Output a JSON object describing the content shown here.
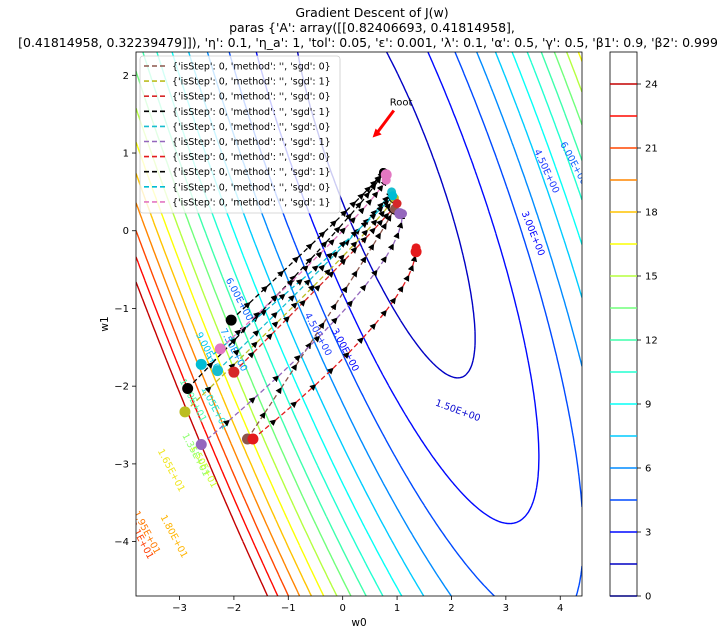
{
  "chart_data": {
    "type": "contour",
    "title": [
      "Gradient Descent of J(w)",
      "paras {'A': array([[0.82406693, 0.41814958],",
      "[0.41814958, 0.32239479]]), 'η': 0.1, 'η_a': 1, 'tol': 0.05, 'ε': 0.001, 'λ': 0.1, 'α': 0.5, 'γ': 0.5, 'β1': 0.9, 'β2': 0.999}"
    ],
    "xlabel": "w0",
    "ylabel": "w1",
    "xlim": [
      -3.8,
      4.4
    ],
    "ylim": [
      -4.7,
      2.3
    ],
    "xticks": [
      -3,
      -2,
      -1,
      0,
      1,
      2,
      3,
      4
    ],
    "yticks": [
      -4,
      -3,
      -2,
      -1,
      0,
      1,
      2
    ],
    "contour_levels": [
      0,
      1.5,
      3,
      4.5,
      6,
      7.5,
      9,
      10.5,
      12,
      13.5,
      15,
      16.5,
      18,
      19.5,
      21,
      22.5,
      24
    ],
    "contour_labels": [
      {
        "text": "1.50E+00",
        "x": 2.1,
        "y": -2.35,
        "angle": 20,
        "color": "#0a0ad0"
      },
      {
        "text": "3.00E+00",
        "x": 0.0,
        "y": -1.55,
        "angle": 62,
        "color": "#0000ff"
      },
      {
        "text": "3.00E+00",
        "x": 3.45,
        "y": -0.05,
        "angle": 68,
        "color": "#0000ff"
      },
      {
        "text": "4.50E+00",
        "x": -0.5,
        "y": -1.35,
        "angle": 62,
        "color": "#1f3cff"
      },
      {
        "text": "4.50E+00",
        "x": 3.7,
        "y": 0.75,
        "angle": 65,
        "color": "#1f3cff"
      },
      {
        "text": "6.00E+00",
        "x": -1.95,
        "y": -0.9,
        "angle": 62,
        "color": "#0a62ff"
      },
      {
        "text": "6.00E+00",
        "x": 4.2,
        "y": 0.85,
        "angle": 62,
        "color": "#0a62ff"
      },
      {
        "text": "7.50E+00",
        "x": -2.05,
        "y": -1.55,
        "angle": 62,
        "color": "#0096ff"
      },
      {
        "text": "9.00E+00",
        "x": -2.5,
        "y": -1.6,
        "angle": 62,
        "color": "#00c8f0"
      },
      {
        "text": "1.05E+01",
        "x": -2.4,
        "y": -2.3,
        "angle": 62,
        "color": "#1ee6d2"
      },
      {
        "text": "1.20E+01",
        "x": -2.8,
        "y": -2.2,
        "angle": 62,
        "color": "#4dffa8"
      },
      {
        "text": "1.35E+01",
        "x": -2.75,
        "y": -2.9,
        "angle": 62,
        "color": "#8cff6e"
      },
      {
        "text": "1.50E+01",
        "x": -2.6,
        "y": -3.05,
        "angle": 62,
        "color": "#c8ff32"
      },
      {
        "text": "1.65E+01",
        "x": -3.2,
        "y": -3.1,
        "angle": 62,
        "color": "#f0e61e"
      },
      {
        "text": "1.80E+01",
        "x": -3.15,
        "y": -3.95,
        "angle": 62,
        "color": "#ffb400"
      },
      {
        "text": "1.95E+01",
        "x": -3.65,
        "y": -3.9,
        "angle": 62,
        "color": "#ff7800"
      },
      {
        "text": "2.1E+01",
        "x": -3.75,
        "y": -4.0,
        "angle": 62,
        "color": "#ff3c00"
      }
    ],
    "annotation": {
      "text": "Root",
      "x": 1.05,
      "y": 1.65,
      "arrow_to": [
        0.55,
        1.2
      ]
    },
    "series": [
      {
        "name": "{'isStep': 0, 'method': '', 'sgd': 0}",
        "color": "#8c564b",
        "dash": "5,3",
        "start": [
          -1.75,
          -2.68
        ],
        "end": [
          0.95,
          0.28
        ],
        "ctrl": [
          0.55,
          -0.25
        ]
      },
      {
        "name": "{'isStep': 0, 'method': '', 'sgd': 1}",
        "color": "#bcbd22",
        "dash": "5,3",
        "start": [
          -2.9,
          -2.33
        ],
        "end": [
          0.95,
          0.42
        ],
        "ctrl": [
          0.5,
          -0.05
        ]
      },
      {
        "name": "{'isStep': 0, 'method': '', 'sgd': 0}",
        "color": "#d62728",
        "dash": "5,3",
        "start": [
          -2.0,
          -1.82
        ],
        "end": [
          1.0,
          0.35
        ],
        "ctrl": [
          0.6,
          0.0
        ]
      },
      {
        "name": "{'isStep': 0, 'method': '', 'sgd': 1}",
        "color": "#000000",
        "dash": "5,3",
        "start": [
          -2.85,
          -2.03
        ],
        "end": [
          0.75,
          0.75
        ],
        "ctrl": [
          0.45,
          0.35
        ]
      },
      {
        "name": "{'isStep': 0, 'method': '', 'sgd': 0}",
        "color": "#17becf",
        "dash": "5,3",
        "start": [
          -2.3,
          -1.8
        ],
        "end": [
          0.9,
          0.5
        ],
        "ctrl": [
          0.5,
          0.1
        ]
      },
      {
        "name": "{'isStep': 0, 'method': '', 'sgd': 1}",
        "color": "#9467bd",
        "dash": "5,3",
        "start": [
          -2.6,
          -2.75
        ],
        "end": [
          1.1,
          0.22
        ],
        "ctrl": [
          1.1,
          -0.55
        ]
      },
      {
        "name": "{'isStep': 0, 'method': '', 'sgd': 0}",
        "color": "#e41a1c",
        "dash": "5,3",
        "start": [
          -1.65,
          -2.68
        ],
        "end": [
          1.35,
          -0.22
        ],
        "ctrl": [
          1.35,
          -0.95
        ]
      },
      {
        "name": "{'isStep': 0, 'method': '', 'sgd': 1}",
        "color": "#000000",
        "dash": "5,3",
        "start": [
          -2.05,
          -1.15
        ],
        "end": [
          0.75,
          0.75
        ],
        "ctrl": [
          0.4,
          0.45
        ]
      },
      {
        "name": "{'isStep': 0, 'method': '', 'sgd': 0}",
        "color": "#00bcd4",
        "dash": "5,3",
        "start": [
          -2.6,
          -1.72
        ],
        "end": [
          0.92,
          0.45
        ],
        "ctrl": [
          0.45,
          0.05
        ]
      },
      {
        "name": "{'isStep': 0, 'method': '', 'sgd': 1}",
        "color": "#e377c2",
        "dash": "5,3",
        "start": [
          -2.25,
          -1.52
        ],
        "end": [
          0.8,
          0.65
        ],
        "ctrl": [
          0.4,
          0.2
        ]
      }
    ],
    "extra_endpoints": [
      {
        "x": 1.35,
        "y": -0.27,
        "color": "#e41a1c"
      },
      {
        "x": 0.8,
        "y": 0.72,
        "color": "#e377c2"
      },
      {
        "x": 1.05,
        "y": 0.22,
        "color": "#9467bd"
      }
    ],
    "colorbar": {
      "ticks": [
        0,
        3,
        6,
        9,
        12,
        15,
        18,
        21,
        24
      ],
      "levels": [
        0,
        1.5,
        3,
        4.5,
        6,
        7.5,
        9,
        10.5,
        12,
        13.5,
        15,
        16.5,
        18,
        19.5,
        21,
        22.5,
        24
      ],
      "range": [
        0,
        25.5
      ]
    }
  }
}
